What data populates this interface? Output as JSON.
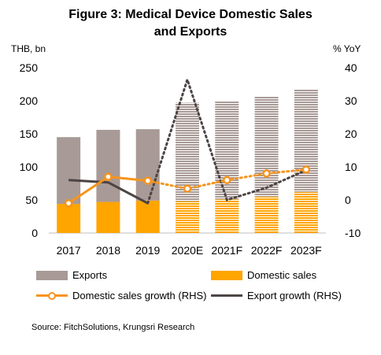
{
  "title_line1": "Figure 3:  Medical Device Domestic Sales",
  "title_line2": "and Exports",
  "left_unit": "THB, bn",
  "right_unit": "% YoY",
  "legend": {
    "exports": "Exports",
    "domestic": "Domestic sales",
    "domestic_growth": "Domestic sales growth (RHS)",
    "export_growth": "Export growth (RHS)"
  },
  "source": "Source: FitchSolutions, Krungsri Research",
  "colors": {
    "exports": "#A89A96",
    "domestic": "#FFA500",
    "domestic_growth": "#F7941D",
    "export_growth": "#4D4545",
    "forecast_stripe": "#FFFFFF"
  },
  "chart_data": {
    "type": "bar",
    "categories": [
      "2017",
      "2018",
      "2019",
      "2020E",
      "2021F",
      "2022F",
      "2023F"
    ],
    "forecast_from_index": 3,
    "left_axis": {
      "label": "THB, bn",
      "ticks": [
        0,
        50,
        100,
        150,
        200,
        250
      ],
      "ylim": [
        0,
        250
      ]
    },
    "right_axis": {
      "label": "% YoY",
      "ticks": [
        -10,
        0,
        10,
        20,
        30,
        40
      ],
      "ylim": [
        -10,
        40
      ]
    },
    "series": [
      {
        "name": "Domestic sales",
        "axis": "left",
        "kind": "stacked-bar",
        "values": [
          44,
          47,
          49,
          48,
          51,
          55,
          62
        ]
      },
      {
        "name": "Exports",
        "axis": "left",
        "kind": "stacked-bar",
        "values": [
          101,
          109,
          108,
          149,
          148,
          151,
          155
        ]
      },
      {
        "name": "Domestic sales growth (RHS)",
        "axis": "right",
        "kind": "line-markers",
        "values": [
          -1,
          7,
          5.8,
          3.4,
          6,
          8,
          9.2
        ]
      },
      {
        "name": "Export growth (RHS)",
        "axis": "right",
        "kind": "line",
        "values": [
          6,
          5.3,
          -1,
          36.4,
          0,
          3.7,
          9
        ]
      }
    ],
    "grid": false,
    "legend_position": "bottom"
  }
}
